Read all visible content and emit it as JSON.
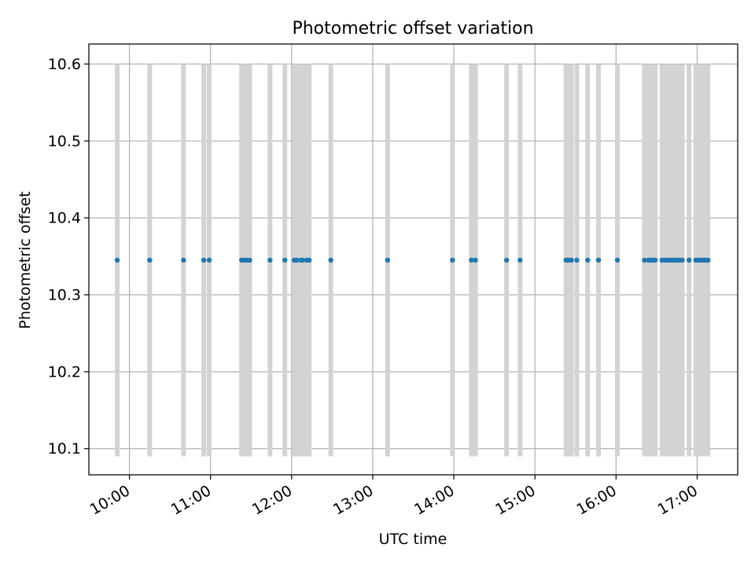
{
  "chart_data": {
    "type": "scatter",
    "title": "Photometric offset variation",
    "xlabel": "UTC time",
    "ylabel": "Photometric offset",
    "x_ticks": [
      "10:00",
      "11:00",
      "12:00",
      "13:00",
      "14:00",
      "15:00",
      "16:00",
      "17:00"
    ],
    "y_ticks": [
      "10.1",
      "10.2",
      "10.3",
      "10.4",
      "10.5",
      "10.6"
    ],
    "xlim": [
      "09:30",
      "17:30"
    ],
    "ylim": [
      10.066,
      10.626
    ],
    "grid": true,
    "series": [
      {
        "kind": "points",
        "color": "#1f77b4",
        "y": 10.345,
        "x": [
          "09:51",
          "10:15",
          "10:40",
          "10:55",
          "10:59",
          "11:23",
          "11:25",
          "11:27",
          "11:29",
          "11:44",
          "11:55",
          "12:02",
          "12:04",
          "12:07",
          "12:08",
          "12:11",
          "12:13",
          "12:29",
          "13:11",
          "13:59",
          "14:13",
          "14:16",
          "14:39",
          "14:49",
          "15:23",
          "15:24",
          "15:26",
          "15:27",
          "15:31",
          "15:39",
          "15:47",
          "16:01",
          "16:21",
          "16:24",
          "16:26",
          "16:27",
          "16:29",
          "16:34",
          "16:36",
          "16:38",
          "16:40",
          "16:42",
          "16:43",
          "16:45",
          "16:47",
          "16:49",
          "16:54",
          "16:59",
          "17:01",
          "17:03",
          "17:05",
          "17:06",
          "17:08"
        ]
      },
      {
        "kind": "vertical-bars",
        "color": "#d3d3d3",
        "y_range": [
          10.09,
          10.6
        ],
        "x": [
          "09:51",
          "10:15",
          "10:40",
          "10:55",
          "10:59",
          "11:23",
          "11:25",
          "11:27",
          "11:29",
          "11:44",
          "11:55",
          "12:02",
          "12:04",
          "12:07",
          "12:08",
          "12:11",
          "12:13",
          "12:29",
          "13:11",
          "13:59",
          "14:13",
          "14:16",
          "14:39",
          "14:49",
          "15:23",
          "15:24",
          "15:26",
          "15:27",
          "15:31",
          "15:39",
          "15:47",
          "16:01",
          "16:21",
          "16:24",
          "16:26",
          "16:27",
          "16:29",
          "16:34",
          "16:36",
          "16:38",
          "16:40",
          "16:42",
          "16:43",
          "16:45",
          "16:47",
          "16:49",
          "16:54",
          "16:59",
          "17:01",
          "17:03",
          "17:05",
          "17:06",
          "17:08"
        ]
      }
    ]
  }
}
